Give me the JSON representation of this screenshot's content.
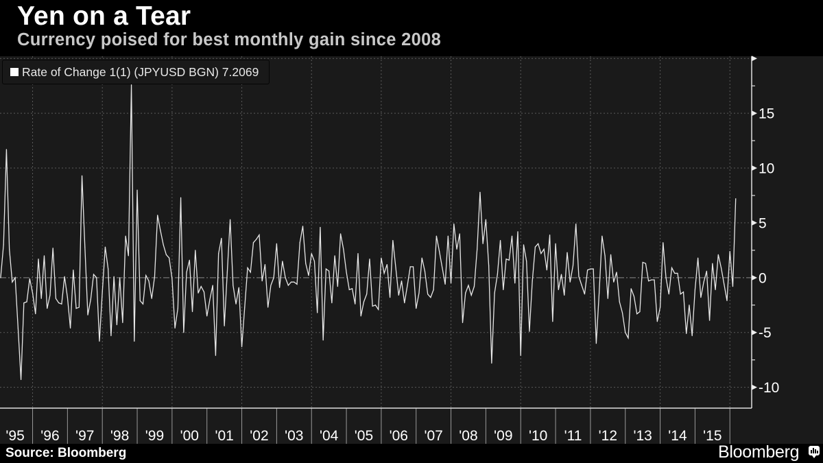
{
  "header": {
    "title": "Yen on a Tear",
    "subtitle": "Currency poised for best monthly gain since 2008"
  },
  "legend": {
    "marker_icon": "square-marker-icon",
    "label": "Rate of Change 1(1) (JPYUSD BGN) 7.2069"
  },
  "footer": {
    "source": "Source: Bloomberg",
    "brand": "Bloomberg",
    "brand_icon": "bloomberg-chart-icon"
  },
  "colors": {
    "background": "#000000",
    "plot_background": "#1a1a1a",
    "series_line": "#e8e8e8",
    "subtitle": "#c8c8c8",
    "gridline": "#5a5a5a",
    "zero_line": "#8a8a8a"
  },
  "chart_data": {
    "type": "line",
    "title": "Yen on a Tear",
    "subtitle": "Currency poised for best monthly gain since 2008",
    "xlabel": "",
    "ylabel": "",
    "y_axis_side": "right",
    "legend_position": "top-left",
    "grid": true,
    "ylim": [
      -11.9,
      20.2
    ],
    "y_ticks": [
      15,
      10,
      5,
      0,
      -5,
      -10
    ],
    "y_tick_labels": [
      "15",
      "10",
      "5",
      "0",
      "-5",
      "-10"
    ],
    "x_range": [
      "1995-01",
      "2016-02"
    ],
    "x_tick_labels": [
      "'95",
      "'96",
      "'97",
      "'98",
      "'99",
      "'00",
      "'01",
      "'02",
      "'03",
      "'04",
      "'05",
      "'06",
      "'07",
      "'08",
      "'09",
      "'10",
      "'11",
      "'12",
      "'13",
      "'14",
      "'15"
    ],
    "series": [
      {
        "name": "Rate of Change 1(1) (JPYUSD BGN)",
        "last_value": 7.2069,
        "start": "1995-01",
        "frequency": "monthly",
        "values": [
          0.0,
          3.0,
          11.7,
          2.6,
          -0.4,
          0.0,
          -4.6,
          -9.3,
          -2.3,
          -2.2,
          -0.1,
          -1.4,
          -3.3,
          1.7,
          -1.9,
          2.0,
          -2.8,
          -1.6,
          2.7,
          -1.9,
          -2.3,
          -2.4,
          0.1,
          -1.8,
          -4.6,
          0.7,
          -2.8,
          -2.7,
          9.3,
          2.8,
          -3.4,
          -2.0,
          0.3,
          0.0,
          -5.8,
          -1.3,
          2.8,
          0.8,
          -5.3,
          0.1,
          -4.3,
          0.0,
          -4.1,
          3.8,
          2.0,
          17.6,
          -5.8,
          8.0,
          -2.1,
          -2.4,
          0.2,
          -0.3,
          -1.9,
          0.1,
          5.7,
          4.3,
          3.0,
          2.1,
          1.8,
          -0.1,
          -4.6,
          -2.8,
          7.3,
          -5.0,
          0.5,
          1.6,
          -3.1,
          2.5,
          -1.4,
          -0.8,
          -1.3,
          -3.5,
          -2.0,
          -0.7,
          -7.1,
          2.2,
          3.6,
          -4.4,
          0.5,
          5.3,
          -0.7,
          -2.4,
          -0.9,
          -6.3,
          -2.7,
          0.9,
          0.5,
          3.2,
          3.5,
          3.9,
          -0.3,
          1.2,
          -2.7,
          -0.7,
          0.0,
          3.1,
          -0.9,
          1.5,
          0.0,
          -0.7,
          -0.4,
          -0.4,
          -0.6,
          3.2,
          4.7,
          1.3,
          0.2,
          2.2,
          1.5,
          -3.2,
          4.6,
          -5.7,
          0.8,
          0.6,
          -2.3,
          2.0,
          -0.8,
          4.0,
          2.6,
          0.5,
          -1.1,
          -1.0,
          -2.4,
          2.2,
          -3.5,
          -2.2,
          -1.5,
          1.7,
          -2.6,
          -2.5,
          -2.9,
          1.8,
          0.4,
          1.2,
          -1.8,
          3.4,
          0.9,
          -1.6,
          -0.3,
          -2.3,
          -0.7,
          1.0,
          1.0,
          -2.8,
          -1.4,
          1.8,
          0.6,
          -1.5,
          -1.8,
          -1.1,
          3.8,
          2.4,
          0.9,
          -0.6,
          3.8,
          -0.5,
          4.9,
          2.6,
          4.0,
          -4.1,
          -1.4,
          -0.7,
          -1.6,
          -0.8,
          2.6,
          7.8,
          3.1,
          5.3,
          1.1,
          -7.8,
          -1.4,
          0.3,
          3.4,
          -1.1,
          1.7,
          1.6,
          3.8,
          -0.5,
          4.2,
          -7.1,
          3.0,
          1.5,
          -4.9,
          -0.3,
          2.8,
          3.1,
          2.2,
          2.6,
          0.7,
          3.9,
          -4.0,
          3.1,
          -1.1,
          0.3,
          -1.6,
          2.3,
          -0.4,
          1.1,
          4.9,
          0.1,
          -0.7,
          -1.5,
          0.7,
          0.8,
          0.8,
          -6.0,
          -1.4,
          3.8,
          2.0,
          -1.9,
          2.1,
          -0.4,
          0.5,
          -2.2,
          -3.2,
          -5.0,
          -5.5,
          -1.0,
          -1.7,
          -3.3,
          -3.1,
          1.4,
          1.3,
          -0.3,
          -0.2,
          -0.2,
          -4.0,
          -2.7,
          3.2,
          0.0,
          -1.5,
          0.9,
          0.4,
          0.4,
          -1.5,
          -1.3,
          -5.1,
          -2.5,
          -5.3,
          -1.1,
          1.8,
          -1.8,
          -0.4,
          0.6,
          -3.9,
          1.3,
          -1.1,
          2.1,
          0.9,
          -0.6,
          -2.1,
          2.4,
          -0.8,
          7.2069
        ]
      }
    ]
  }
}
